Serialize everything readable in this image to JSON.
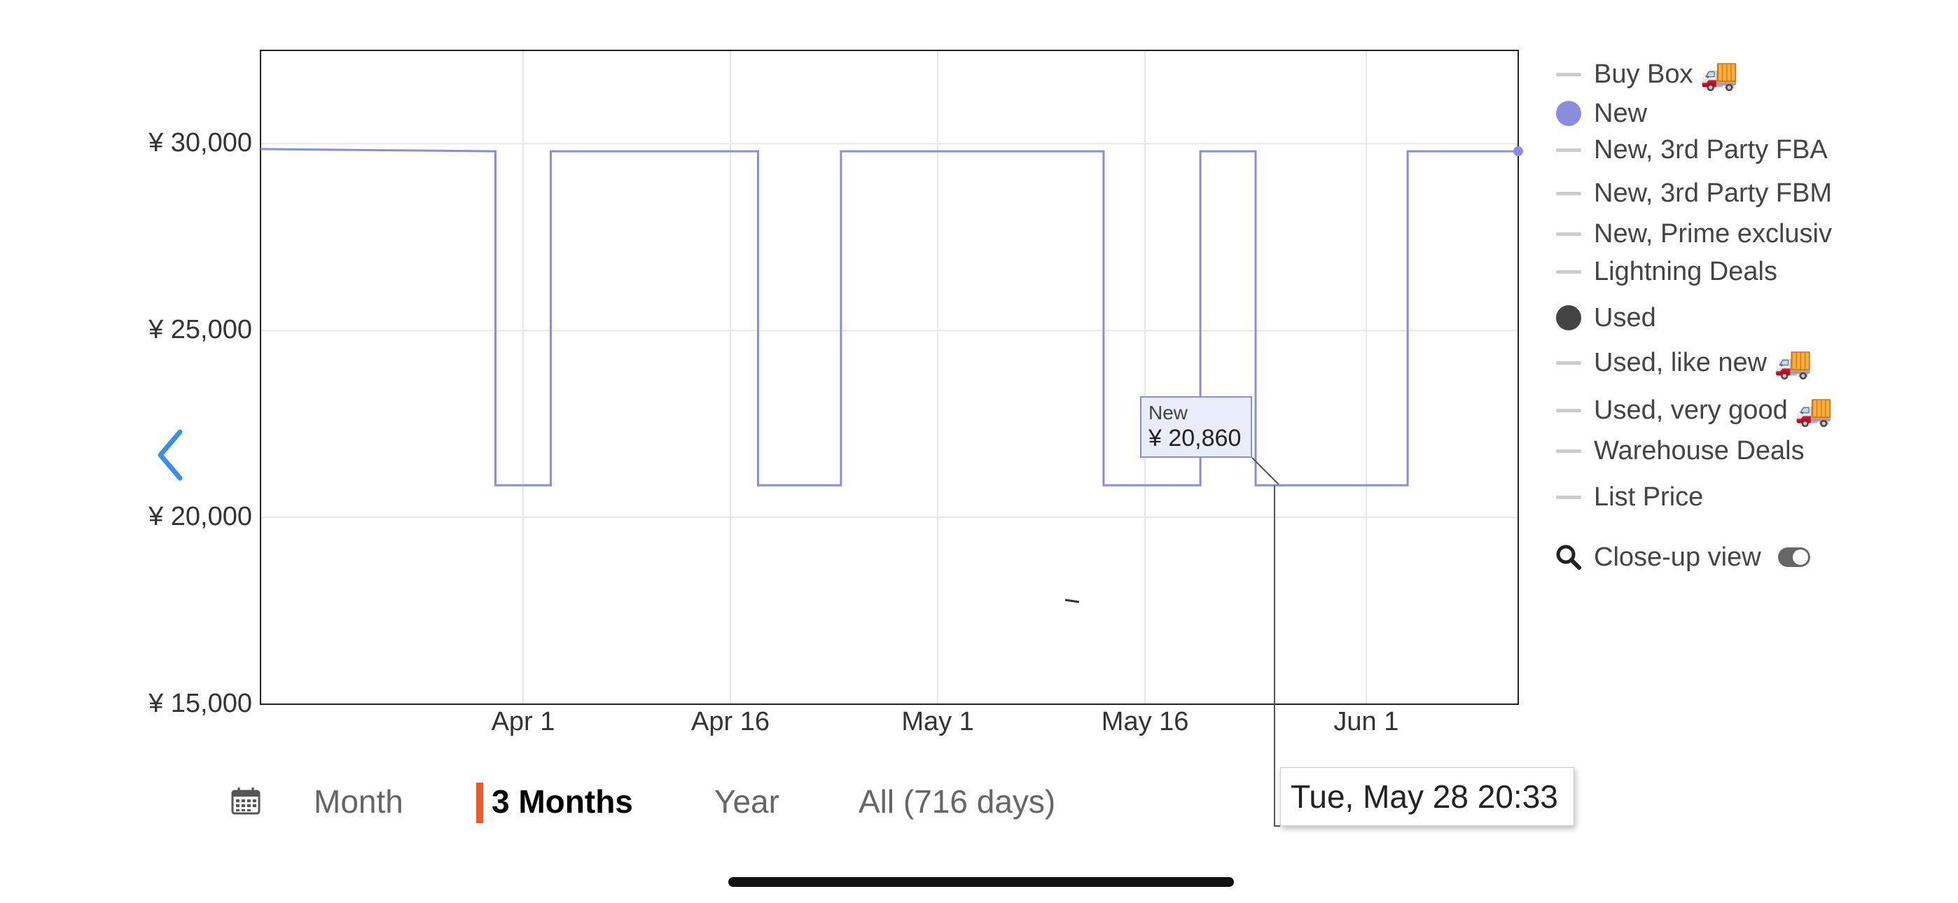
{
  "chart_data": {
    "type": "line",
    "title": "",
    "currency": "¥",
    "ylim": [
      15000,
      32500
    ],
    "y_ticks": [
      "¥ 30,000",
      "¥ 25,000",
      "¥ 20,000",
      "¥ 15,000"
    ],
    "y_tick_values": [
      30000,
      25000,
      20000,
      15000
    ],
    "x_ticks": [
      "Apr 1",
      "Apr 16",
      "May 1",
      "May 16",
      "Jun 1"
    ],
    "x_range": [
      "Mar 13",
      "Jun 12"
    ],
    "grid": true,
    "series": [
      {
        "name": "New",
        "color": "#8a8ddc",
        "step": true,
        "points": [
          [
            "Mar 13",
            29860
          ],
          [
            "Mar 30",
            29800
          ],
          [
            "Mar 30",
            20860
          ],
          [
            "Apr 3",
            20860
          ],
          [
            "Apr 3",
            29800
          ],
          [
            "Apr 18",
            29800
          ],
          [
            "Apr 18",
            20860
          ],
          [
            "Apr 24",
            20860
          ],
          [
            "Apr 24",
            29800
          ],
          [
            "May 13",
            29800
          ],
          [
            "May 13",
            20860
          ],
          [
            "May 20",
            20860
          ],
          [
            "May 20",
            29800
          ],
          [
            "May 24",
            29800
          ],
          [
            "May 24",
            20860
          ],
          [
            "Jun 4",
            20860
          ],
          [
            "Jun 4",
            29800
          ],
          [
            "Jun 12",
            29800
          ]
        ]
      }
    ],
    "tooltip": {
      "series": "New",
      "value": "¥ 20,860",
      "date": "Tue, May 28 20:33"
    }
  },
  "legend": {
    "items": [
      {
        "label": "Buy Box",
        "symbol": "dash",
        "color": "#cccccc",
        "truck": true
      },
      {
        "label": "New",
        "symbol": "dot",
        "color": "#8a8ddc",
        "truck": false
      },
      {
        "label": "New, 3rd Party FBA",
        "symbol": "dash",
        "color": "#cccccc",
        "truck": false
      },
      {
        "label": "New, 3rd Party FBM",
        "symbol": "dash",
        "color": "#cccccc",
        "truck": false
      },
      {
        "label": "New, Prime exclusiv",
        "symbol": "dash",
        "color": "#cccccc",
        "truck": false
      },
      {
        "label": "Lightning Deals",
        "symbol": "dash",
        "color": "#cccccc",
        "truck": false
      },
      {
        "label": "Used",
        "symbol": "dot",
        "color": "#444444",
        "truck": false
      },
      {
        "label": "Used, like new",
        "symbol": "dash",
        "color": "#cccccc",
        "truck": true
      },
      {
        "label": "Used, very good",
        "symbol": "dash",
        "color": "#cccccc",
        "truck": true
      },
      {
        "label": "Warehouse Deals",
        "symbol": "dash",
        "color": "#cccccc",
        "truck": false
      },
      {
        "label": "List Price",
        "symbol": "dash",
        "color": "#cccccc",
        "truck": false
      }
    ],
    "closeup_label": "Close-up view",
    "truck_glyph": "🚚"
  },
  "range_bar": {
    "options": [
      "Month",
      "3 Months",
      "Year",
      "All (716 days)"
    ],
    "selected": "3 Months",
    "accent": "#f05a28"
  },
  "tooltip": {
    "series": "New",
    "value": "¥ 20,860"
  },
  "hover_date": "Tue, May 28 20:33"
}
